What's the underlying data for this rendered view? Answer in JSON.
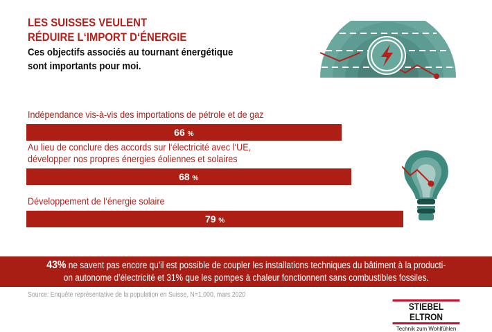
{
  "header": {
    "title_line1": "LES SUISSES VEULENT",
    "title_line2": "RÉDUIRE L‘IMPORT D‘ÉNERGIE",
    "subtitle_line1": "Ces objectifs associés au tournant énergétique",
    "subtitle_line2": "sont importants pour moi."
  },
  "chart_data": {
    "type": "bar",
    "orientation": "horizontal",
    "categories": [
      "Indépendance vis-à-vis des importations de pétrole et de gaz",
      "Au lieu de conclure des accords sur l‘électricité avec l‘UE, développer nos propres énergies éoliennes et solaires",
      "Développement de l‘énergie solaire"
    ],
    "category_lines": [
      [
        "Indépendance vis-à-vis des importations de pétrole et de gaz"
      ],
      [
        "Au lieu de conclure des accords sur l‘électricité avec l‘UE,",
        "développer nos propres énergies éoliennes et solaires"
      ],
      [
        "Développement de l‘énergie solaire"
      ]
    ],
    "values": [
      66,
      68,
      79
    ],
    "labels": [
      "66",
      "68",
      "79"
    ],
    "unit": "%",
    "bar_color": "#ad1e14"
  },
  "note": {
    "highlight": "43%",
    "line1": " ne savent pas encore qu'il est possible de coupler les installations techniques du bâtiment à la producti-",
    "line2": "on autonome d’électricité et 31% que les pompes à chaleur fonctionnent sans combustibles fossiles."
  },
  "source": "Source: Enquête représentative de la population en Suisse, N=1.000, mars 2020",
  "logo": {
    "name": "STIEBEL ELTRON",
    "tagline": "Technik zum Wohlfühlen"
  },
  "colors": {
    "accent": "#b5201a",
    "teal": "#4f8f86"
  }
}
